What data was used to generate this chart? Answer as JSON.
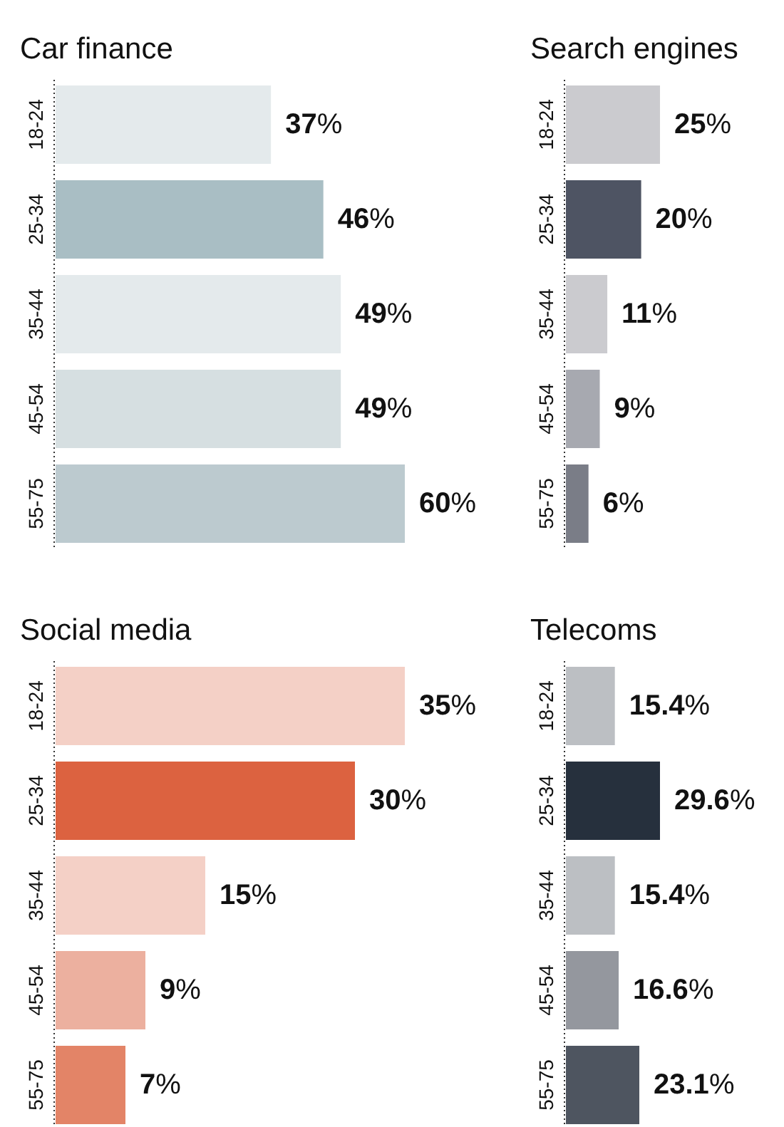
{
  "chart_data": [
    {
      "type": "bar",
      "orientation": "horizontal",
      "title": "Car finance",
      "categories": [
        "18-24",
        "25-34",
        "35-44",
        "45-54",
        "55-75"
      ],
      "values": [
        37,
        46,
        49,
        49,
        60
      ],
      "value_labels": [
        "37%",
        "46%",
        "49%",
        "49%",
        "60%"
      ],
      "colors": [
        "#e4eaec",
        "#a9bec4",
        "#e4eaec",
        "#d6dfe1",
        "#bccacf"
      ]
    },
    {
      "type": "bar",
      "orientation": "horizontal",
      "title": "Search engines",
      "categories": [
        "18-24",
        "25-34",
        "35-44",
        "45-54",
        "55-75"
      ],
      "values": [
        25,
        20,
        11,
        9,
        6
      ],
      "value_labels": [
        "25%",
        "20%",
        "11%",
        "9%",
        "6%"
      ],
      "colors": [
        "#cbcbcf",
        "#4e5463",
        "#cbcbcf",
        "#a7a9b0",
        "#7a7d87"
      ]
    },
    {
      "type": "bar",
      "orientation": "horizontal",
      "title": "Social media",
      "categories": [
        "18-24",
        "25-34",
        "35-44",
        "45-54",
        "55-75"
      ],
      "values": [
        35,
        30,
        15,
        9,
        7
      ],
      "value_labels": [
        "35%",
        "30%",
        "15%",
        "9%",
        "7%"
      ],
      "colors": [
        "#f4d0c6",
        "#dc6240",
        "#f4d0c6",
        "#ecb09f",
        "#e38467"
      ]
    },
    {
      "type": "bar",
      "orientation": "horizontal",
      "title": "Telecoms",
      "categories": [
        "18-24",
        "25-34",
        "35-44",
        "45-54",
        "55-75"
      ],
      "values": [
        15.4,
        29.6,
        15.4,
        16.6,
        23.1
      ],
      "value_labels": [
        "15.4%",
        "29.6%",
        "15.4%",
        "16.6%",
        "23.1%"
      ],
      "colors": [
        "#bcbfc3",
        "#26303d",
        "#bcbfc3",
        "#94979e",
        "#4e5560"
      ]
    }
  ]
}
